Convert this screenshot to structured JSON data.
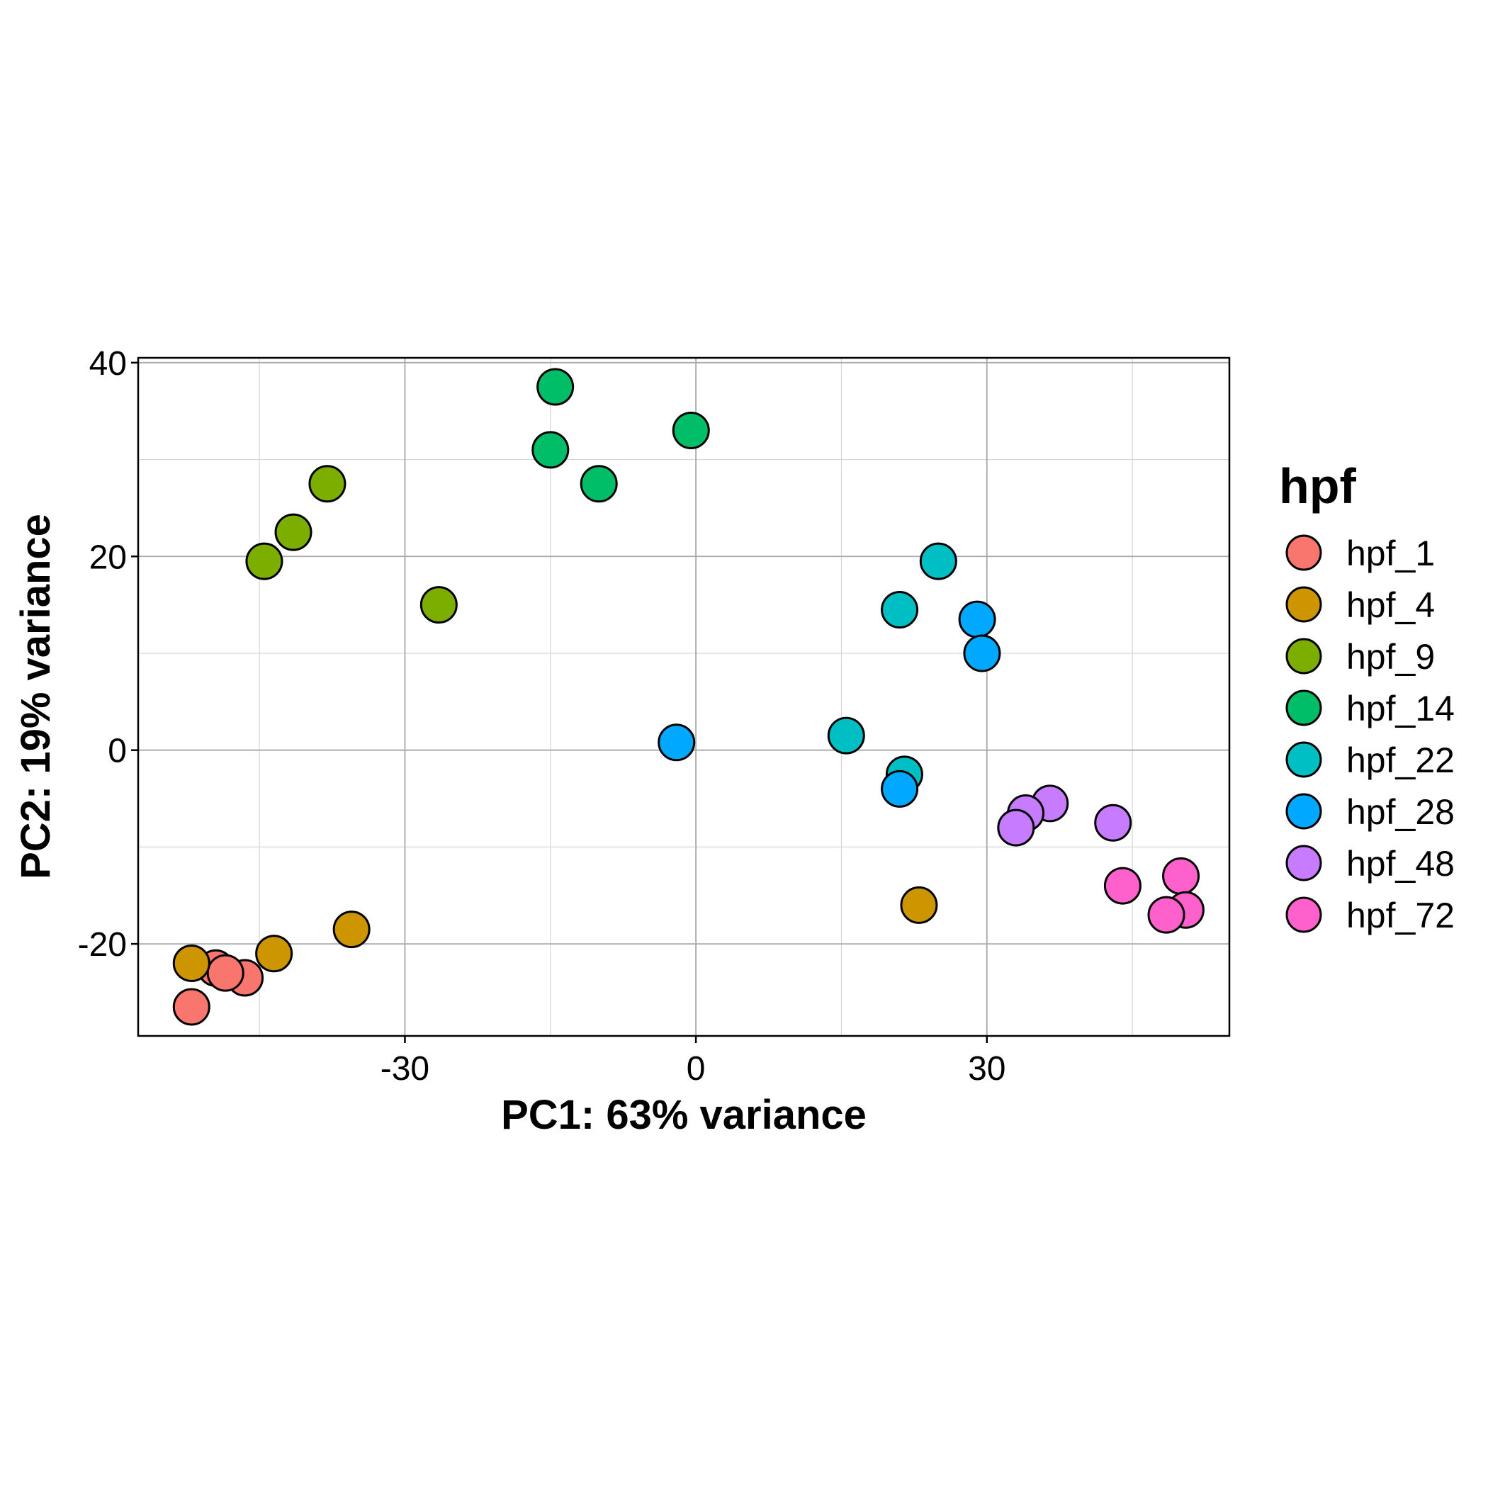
{
  "chart_data": {
    "type": "scatter",
    "xlabel": "PC1: 63% variance",
    "ylabel": "PC2: 19% variance",
    "xlim": [
      -57.5,
      55
    ],
    "ylim": [
      -29.5,
      40.5
    ],
    "xticks": [
      -30,
      0,
      30
    ],
    "yticks": [
      -20,
      0,
      20,
      40
    ],
    "x_minor_gridlines": [
      -45,
      -15,
      15,
      45
    ],
    "y_minor_gridlines": [
      -10,
      10,
      30
    ],
    "grid": true,
    "legend": {
      "title": "hpf",
      "placement": "right"
    },
    "series": [
      {
        "name": "hpf_1",
        "color": "#F8766D",
        "points": [
          [
            -49.5,
            -22.5
          ],
          [
            -52,
            -26.5
          ],
          [
            -46.5,
            -23.5
          ],
          [
            -48.5,
            -23.0
          ]
        ]
      },
      {
        "name": "hpf_4",
        "color": "#CD9600",
        "points": [
          [
            -52,
            -22.0
          ],
          [
            -43.5,
            -21.0
          ],
          [
            -35.5,
            -18.5
          ],
          [
            23,
            -16.0
          ]
        ]
      },
      {
        "name": "hpf_9",
        "color": "#7CAE00",
        "points": [
          [
            -38,
            27.5
          ],
          [
            -41.5,
            22.5
          ],
          [
            -44.5,
            19.5
          ],
          [
            -26.5,
            15.0
          ]
        ]
      },
      {
        "name": "hpf_14",
        "color": "#00BE67",
        "points": [
          [
            -14.5,
            37.5
          ],
          [
            -0.5,
            33.0
          ],
          [
            -15,
            31.0
          ],
          [
            -10,
            27.5
          ]
        ]
      },
      {
        "name": "hpf_22",
        "color": "#00BFC4",
        "points": [
          [
            25,
            19.5
          ],
          [
            21,
            14.5
          ],
          [
            15.5,
            1.5
          ],
          [
            21.5,
            -2.5
          ]
        ]
      },
      {
        "name": "hpf_28",
        "color": "#00A9FF",
        "points": [
          [
            29,
            13.5
          ],
          [
            29.5,
            10.0
          ],
          [
            -2,
            0.8
          ],
          [
            21,
            -4.0
          ]
        ]
      },
      {
        "name": "hpf_48",
        "color": "#C77CFF",
        "points": [
          [
            36.5,
            -5.5
          ],
          [
            34,
            -6.5
          ],
          [
            33,
            -8.0
          ],
          [
            43,
            -7.5
          ]
        ]
      },
      {
        "name": "hpf_72",
        "color": "#FF61CC",
        "points": [
          [
            50,
            -13.0
          ],
          [
            44,
            -14.0
          ],
          [
            50.5,
            -16.5
          ],
          [
            48.5,
            -17.0
          ]
        ]
      }
    ]
  }
}
